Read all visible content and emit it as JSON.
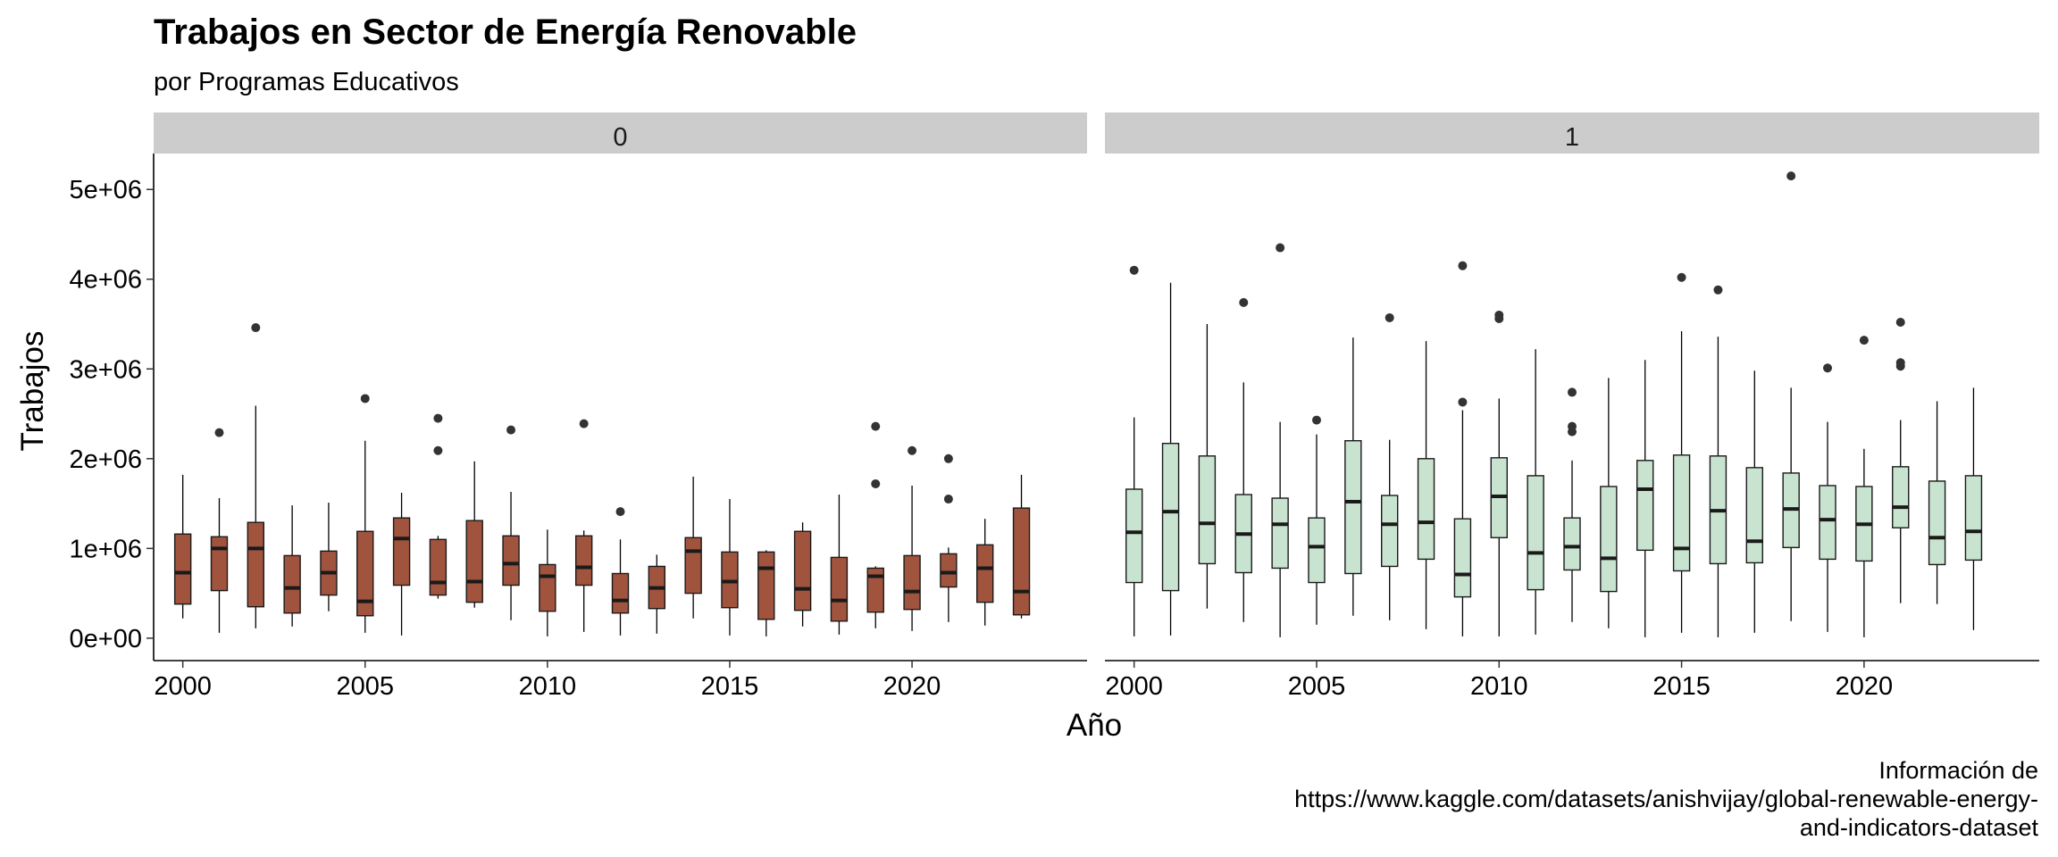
{
  "title": "Trabajos en Sector de Energía Renovable",
  "subtitle": "por Programas Educativos",
  "caption_lines": [
    "Información de",
    "https://www.kaggle.com/datasets/anishvijay/global-renewable-energy-",
    "and-indicators-dataset"
  ],
  "chart_data": {
    "type": "boxplot",
    "xlabel": "Año",
    "ylabel": "Trabajos",
    "ylim": [
      -250000,
      5400000
    ],
    "xlim": [
      1999.2,
      2024.8
    ],
    "yticks": [
      0,
      1000000,
      2000000,
      3000000,
      4000000,
      5000000
    ],
    "ytick_labels": [
      "0e+00",
      "1e+06",
      "2e+06",
      "3e+06",
      "4e+06",
      "5e+06"
    ],
    "xticks": [
      2000,
      2005,
      2010,
      2015,
      2020
    ],
    "xtick_labels": [
      "2000",
      "2005",
      "2010",
      "2015",
      "2020"
    ],
    "grid": false,
    "legend": "none",
    "facets": [
      {
        "label": "0",
        "fill": "#A0533D",
        "boxes": [
          {
            "year": 2000,
            "lower": 220000,
            "q1": 380000,
            "median": 730000,
            "q3": 1160000,
            "upper": 1820000,
            "outliers": []
          },
          {
            "year": 2001,
            "lower": 60000,
            "q1": 530000,
            "median": 1000000,
            "q3": 1130000,
            "upper": 1560000,
            "outliers": [
              2290000
            ]
          },
          {
            "year": 2002,
            "lower": 110000,
            "q1": 350000,
            "median": 1000000,
            "q3": 1290000,
            "upper": 2590000,
            "outliers": [
              3460000
            ]
          },
          {
            "year": 2003,
            "lower": 130000,
            "q1": 280000,
            "median": 560000,
            "q3": 920000,
            "upper": 1480000,
            "outliers": []
          },
          {
            "year": 2004,
            "lower": 300000,
            "q1": 480000,
            "median": 730000,
            "q3": 970000,
            "upper": 1510000,
            "outliers": []
          },
          {
            "year": 2005,
            "lower": 60000,
            "q1": 250000,
            "median": 410000,
            "q3": 1190000,
            "upper": 2200000,
            "outliers": [
              2670000
            ]
          },
          {
            "year": 2006,
            "lower": 30000,
            "q1": 590000,
            "median": 1110000,
            "q3": 1340000,
            "upper": 1620000,
            "outliers": []
          },
          {
            "year": 2007,
            "lower": 440000,
            "q1": 480000,
            "median": 620000,
            "q3": 1100000,
            "upper": 1140000,
            "outliers": [
              2090000,
              2450000
            ]
          },
          {
            "year": 2008,
            "lower": 340000,
            "q1": 400000,
            "median": 630000,
            "q3": 1310000,
            "upper": 1970000,
            "outliers": []
          },
          {
            "year": 2009,
            "lower": 200000,
            "q1": 590000,
            "median": 830000,
            "q3": 1140000,
            "upper": 1630000,
            "outliers": [
              2320000
            ]
          },
          {
            "year": 2010,
            "lower": 20000,
            "q1": 300000,
            "median": 690000,
            "q3": 820000,
            "upper": 1210000,
            "outliers": []
          },
          {
            "year": 2011,
            "lower": 70000,
            "q1": 590000,
            "median": 790000,
            "q3": 1140000,
            "upper": 1200000,
            "outliers": [
              2390000
            ]
          },
          {
            "year": 2012,
            "lower": 30000,
            "q1": 280000,
            "median": 420000,
            "q3": 720000,
            "upper": 1100000,
            "outliers": [
              1410000
            ]
          },
          {
            "year": 2013,
            "lower": 50000,
            "q1": 330000,
            "median": 560000,
            "q3": 800000,
            "upper": 930000,
            "outliers": []
          },
          {
            "year": 2014,
            "lower": 220000,
            "q1": 500000,
            "median": 970000,
            "q3": 1120000,
            "upper": 1800000,
            "outliers": []
          },
          {
            "year": 2015,
            "lower": 30000,
            "q1": 340000,
            "median": 630000,
            "q3": 960000,
            "upper": 1550000,
            "outliers": []
          },
          {
            "year": 2016,
            "lower": 20000,
            "q1": 210000,
            "median": 780000,
            "q3": 960000,
            "upper": 980000,
            "outliers": []
          },
          {
            "year": 2017,
            "lower": 130000,
            "q1": 310000,
            "median": 550000,
            "q3": 1190000,
            "upper": 1290000,
            "outliers": []
          },
          {
            "year": 2018,
            "lower": 40000,
            "q1": 190000,
            "median": 420000,
            "q3": 900000,
            "upper": 1600000,
            "outliers": []
          },
          {
            "year": 2019,
            "lower": 110000,
            "q1": 290000,
            "median": 690000,
            "q3": 780000,
            "upper": 800000,
            "outliers": [
              1720000,
              2360000
            ]
          },
          {
            "year": 2020,
            "lower": 80000,
            "q1": 320000,
            "median": 520000,
            "q3": 920000,
            "upper": 1700000,
            "outliers": [
              2090000
            ]
          },
          {
            "year": 2021,
            "lower": 180000,
            "q1": 570000,
            "median": 730000,
            "q3": 940000,
            "upper": 1010000,
            "outliers": [
              1550000,
              2000000
            ]
          },
          {
            "year": 2022,
            "lower": 140000,
            "q1": 400000,
            "median": 780000,
            "q3": 1040000,
            "upper": 1330000,
            "outliers": []
          },
          {
            "year": 2023,
            "lower": 220000,
            "q1": 260000,
            "median": 520000,
            "q3": 1450000,
            "upper": 1820000,
            "outliers": []
          }
        ]
      },
      {
        "label": "1",
        "fill": "#C8E3CF",
        "boxes": [
          {
            "year": 2000,
            "lower": 20000,
            "q1": 620000,
            "median": 1180000,
            "q3": 1660000,
            "upper": 2460000,
            "outliers": [
              4100000
            ]
          },
          {
            "year": 2001,
            "lower": 30000,
            "q1": 530000,
            "median": 1410000,
            "q3": 2170000,
            "upper": 3960000,
            "outliers": []
          },
          {
            "year": 2002,
            "lower": 330000,
            "q1": 830000,
            "median": 1280000,
            "q3": 2030000,
            "upper": 3500000,
            "outliers": []
          },
          {
            "year": 2003,
            "lower": 180000,
            "q1": 730000,
            "median": 1160000,
            "q3": 1600000,
            "upper": 2850000,
            "outliers": [
              3740000
            ]
          },
          {
            "year": 2004,
            "lower": 10000,
            "q1": 780000,
            "median": 1270000,
            "q3": 1560000,
            "upper": 2410000,
            "outliers": [
              4350000
            ]
          },
          {
            "year": 2005,
            "lower": 150000,
            "q1": 620000,
            "median": 1020000,
            "q3": 1340000,
            "upper": 2270000,
            "outliers": [
              2430000
            ]
          },
          {
            "year": 2006,
            "lower": 250000,
            "q1": 720000,
            "median": 1520000,
            "q3": 2200000,
            "upper": 3350000,
            "outliers": []
          },
          {
            "year": 2007,
            "lower": 200000,
            "q1": 800000,
            "median": 1270000,
            "q3": 1590000,
            "upper": 2210000,
            "outliers": [
              3570000
            ]
          },
          {
            "year": 2008,
            "lower": 100000,
            "q1": 880000,
            "median": 1290000,
            "q3": 2000000,
            "upper": 3310000,
            "outliers": []
          },
          {
            "year": 2009,
            "lower": 20000,
            "q1": 460000,
            "median": 710000,
            "q3": 1330000,
            "upper": 2540000,
            "outliers": [
              2630000,
              4150000
            ]
          },
          {
            "year": 2010,
            "lower": 20000,
            "q1": 1120000,
            "median": 1580000,
            "q3": 2010000,
            "upper": 2670000,
            "outliers": [
              3560000,
              3600000
            ]
          },
          {
            "year": 2011,
            "lower": 40000,
            "q1": 540000,
            "median": 950000,
            "q3": 1810000,
            "upper": 3220000,
            "outliers": []
          },
          {
            "year": 2012,
            "lower": 180000,
            "q1": 760000,
            "median": 1020000,
            "q3": 1340000,
            "upper": 1980000,
            "outliers": [
              2300000,
              2360000,
              2740000
            ]
          },
          {
            "year": 2013,
            "lower": 110000,
            "q1": 520000,
            "median": 890000,
            "q3": 1690000,
            "upper": 2900000,
            "outliers": []
          },
          {
            "year": 2014,
            "lower": 10000,
            "q1": 980000,
            "median": 1660000,
            "q3": 1980000,
            "upper": 3100000,
            "outliers": []
          },
          {
            "year": 2015,
            "lower": 60000,
            "q1": 750000,
            "median": 1000000,
            "q3": 2040000,
            "upper": 3420000,
            "outliers": [
              4020000
            ]
          },
          {
            "year": 2016,
            "lower": 10000,
            "q1": 830000,
            "median": 1420000,
            "q3": 2030000,
            "upper": 3360000,
            "outliers": [
              3880000
            ]
          },
          {
            "year": 2017,
            "lower": 60000,
            "q1": 840000,
            "median": 1080000,
            "q3": 1900000,
            "upper": 2980000,
            "outliers": []
          },
          {
            "year": 2018,
            "lower": 190000,
            "q1": 1010000,
            "median": 1440000,
            "q3": 1840000,
            "upper": 2790000,
            "outliers": [
              5150000
            ]
          },
          {
            "year": 2019,
            "lower": 70000,
            "q1": 880000,
            "median": 1320000,
            "q3": 1700000,
            "upper": 2410000,
            "outliers": [
              3010000
            ]
          },
          {
            "year": 2020,
            "lower": 10000,
            "q1": 860000,
            "median": 1270000,
            "q3": 1690000,
            "upper": 2110000,
            "outliers": [
              3320000
            ]
          },
          {
            "year": 2021,
            "lower": 390000,
            "q1": 1230000,
            "median": 1460000,
            "q3": 1910000,
            "upper": 2430000,
            "outliers": [
              3030000,
              3070000,
              3520000
            ]
          },
          {
            "year": 2022,
            "lower": 380000,
            "q1": 820000,
            "median": 1120000,
            "q3": 1750000,
            "upper": 2640000,
            "outliers": []
          },
          {
            "year": 2023,
            "lower": 90000,
            "q1": 870000,
            "median": 1190000,
            "q3": 1810000,
            "upper": 2790000,
            "outliers": []
          }
        ]
      }
    ]
  }
}
